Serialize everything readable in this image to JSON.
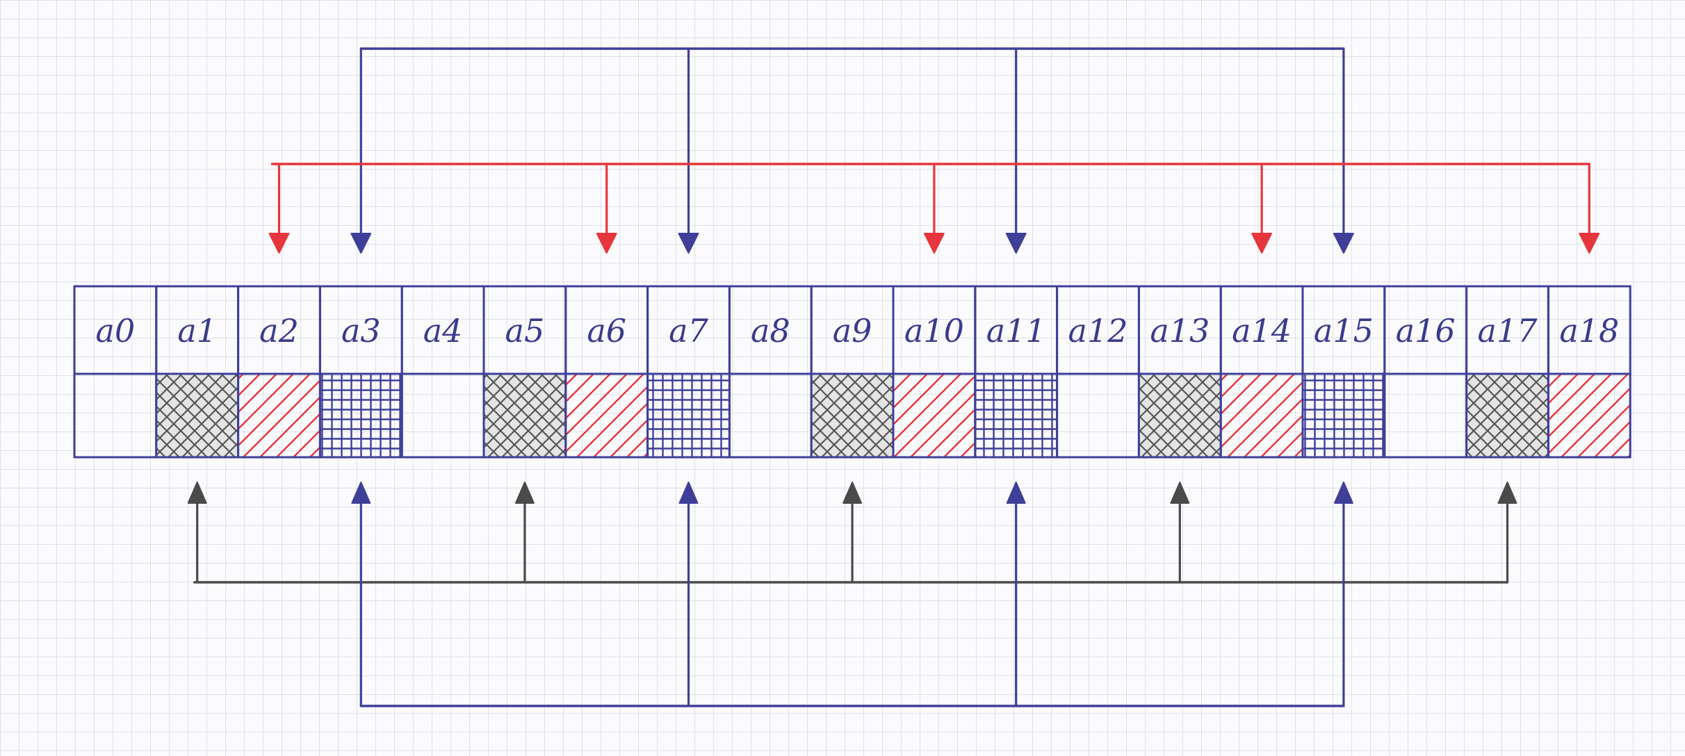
{
  "colors": {
    "ink_blue": "#3f3f99",
    "ink_red": "#e6353c",
    "ink_gray": "#4a4a4a",
    "paper": "#fbfbfd"
  },
  "cells": [
    {
      "label": "a0",
      "pattern": "none"
    },
    {
      "label": "a1",
      "pattern": "crosshatch-gray"
    },
    {
      "label": "a2",
      "pattern": "diagonal-red"
    },
    {
      "label": "a3",
      "pattern": "grid-blue"
    },
    {
      "label": "a4",
      "pattern": "none"
    },
    {
      "label": "a5",
      "pattern": "crosshatch-gray"
    },
    {
      "label": "a6",
      "pattern": "diagonal-red"
    },
    {
      "label": "a7",
      "pattern": "grid-blue"
    },
    {
      "label": "a8",
      "pattern": "none"
    },
    {
      "label": "a9",
      "pattern": "crosshatch-gray"
    },
    {
      "label": "a10",
      "pattern": "diagonal-red"
    },
    {
      "label": "a11",
      "pattern": "grid-blue"
    },
    {
      "label": "a12",
      "pattern": "none"
    },
    {
      "label": "a13",
      "pattern": "crosshatch-gray"
    },
    {
      "label": "a14",
      "pattern": "diagonal-red"
    },
    {
      "label": "a15",
      "pattern": "grid-blue"
    },
    {
      "label": "a16",
      "pattern": "none"
    },
    {
      "label": "a17",
      "pattern": "crosshatch-gray"
    },
    {
      "label": "a18",
      "pattern": "diagonal-red"
    }
  ],
  "connectors": [
    {
      "name": "top-blue-connector",
      "color": "ink_blue",
      "side": "top",
      "targets": [
        3,
        7,
        11,
        15
      ]
    },
    {
      "name": "top-red-connector",
      "color": "ink_red",
      "side": "top",
      "targets": [
        2,
        6,
        10,
        14,
        18
      ]
    },
    {
      "name": "bottom-gray-connector",
      "color": "ink_gray",
      "side": "bottom",
      "targets": [
        1,
        5,
        9,
        13,
        17
      ]
    },
    {
      "name": "bottom-blue-connector",
      "color": "ink_blue",
      "side": "bottom",
      "targets": [
        3,
        7,
        11,
        15
      ]
    }
  ]
}
